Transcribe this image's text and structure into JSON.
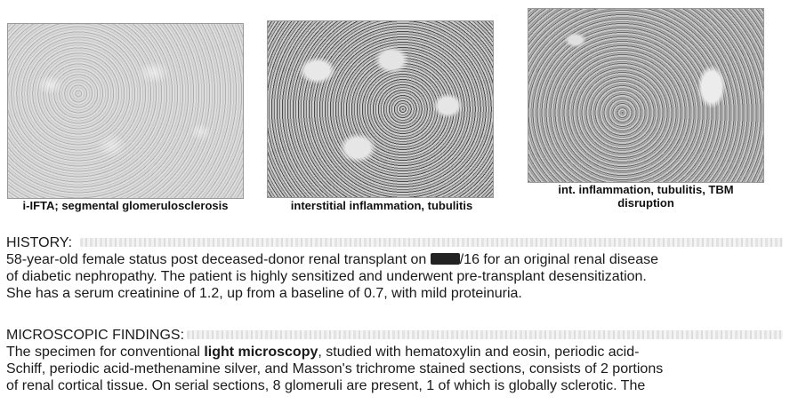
{
  "figures": [
    {
      "caption": "i-IFTA; segmental glomerulosclerosis"
    },
    {
      "caption": "interstitial inflammation, tubulitis"
    },
    {
      "caption_line1": "int. inflammation, tubulitis, TBM",
      "caption_line2": "disruption"
    }
  ],
  "history": {
    "heading": "HISTORY:",
    "line1_before": "58-year-old female status post deceased-donor renal transplant on ",
    "line1_after": "/16 for an original renal disease",
    "line2": "of diabetic nephropathy.  The patient is highly sensitized and underwent pre-transplant desensitization.",
    "line3": "She has a serum creatinine of 1.2, up from a baseline of 0.7, with mild proteinuria."
  },
  "microscopic": {
    "heading": "MICROSCOPIC FINDINGS:",
    "line1_before": "The specimen for conventional ",
    "line1_bold": "light microscopy",
    "line1_after": ", studied with hematoxylin and eosin, periodic acid-",
    "line2": "Schiff, periodic acid-methenamine silver, and Masson's trichrome stained sections, consists of 2 portions",
    "line3": "of renal cortical tissue.  On serial sections, 8 glomeruli are present, 1 of which is globally sclerotic.  The"
  }
}
